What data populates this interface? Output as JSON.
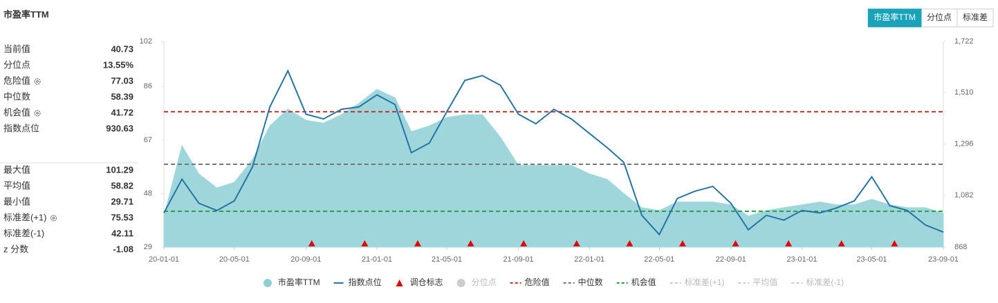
{
  "header": {
    "title": "市盈率TTM"
  },
  "toggle": [
    {
      "label": "市盈率TTM",
      "active": true
    },
    {
      "label": "分位点",
      "active": false
    },
    {
      "label": "标准差",
      "active": false
    }
  ],
  "stats": {
    "groups": [
      [
        {
          "label": "当前值",
          "value": 40.73,
          "icon": false
        },
        {
          "label": "分位点",
          "value": "13.55%",
          "icon": false
        },
        {
          "label": "危险值",
          "value": 77.03,
          "icon": true
        },
        {
          "label": "中位数",
          "value": 58.39,
          "icon": false
        },
        {
          "label": "机会值",
          "value": 41.72,
          "icon": true
        },
        {
          "label": "指数点位",
          "value": 930.63,
          "icon": false
        }
      ],
      [
        {
          "label": "最大值",
          "value": 101.29,
          "icon": false
        },
        {
          "label": "平均值",
          "value": 58.82,
          "icon": false
        },
        {
          "label": "最小值",
          "value": 29.71,
          "icon": false
        },
        {
          "label": "标准差(+1)",
          "value": 75.53,
          "icon": true
        },
        {
          "label": "标准差(-1)",
          "value": 42.11,
          "icon": false
        },
        {
          "label": "z 分数",
          "value": -1.08,
          "icon": false
        }
      ]
    ]
  },
  "chart_data": {
    "type": "dual-axis-area-line",
    "x": [
      "20-01-01",
      "20-02-01",
      "20-03-01",
      "20-04-01",
      "20-05-01",
      "20-06-01",
      "20-07-01",
      "20-08-01",
      "20-09-01",
      "20-10-01",
      "20-11-01",
      "20-12-01",
      "21-01-01",
      "21-02-01",
      "21-03-01",
      "21-04-01",
      "21-05-01",
      "21-06-01",
      "21-07-01",
      "21-08-01",
      "21-09-01",
      "21-10-01",
      "21-11-01",
      "21-12-01",
      "22-01-01",
      "22-02-01",
      "22-03-01",
      "22-04-01",
      "22-05-01",
      "22-06-01",
      "22-07-01",
      "22-08-01",
      "22-09-01",
      "22-10-01",
      "22-11-01",
      "22-12-01",
      "23-01-01",
      "23-02-01",
      "23-03-01",
      "23-04-01",
      "23-05-01",
      "23-06-01",
      "23-07-01",
      "23-08-01",
      "23-09-01"
    ],
    "xlim": [
      "20-01-01",
      "23-09-01"
    ],
    "xticks": [
      "20-01-01",
      "20-05-01",
      "20-09-01",
      "21-01-01",
      "21-05-01",
      "21-09-01",
      "22-01-01",
      "22-05-01",
      "22-09-01",
      "23-01-01",
      "23-05-01",
      "23-09-01"
    ],
    "ylim": [
      29,
      102
    ],
    "yticks": [
      29,
      48,
      67,
      86,
      102
    ],
    "y2lim": [
      868,
      1722
    ],
    "y2ticks": [
      868,
      {
        "value": 1082,
        "label": "1,082"
      },
      {
        "value": 1296,
        "label": "1,296"
      },
      {
        "value": 1510,
        "label": "1,510"
      },
      {
        "value": 1722,
        "label": "1,722"
      }
    ],
    "series": [
      {
        "name": "市盈率TTM",
        "kind": "area",
        "color": "#8ecfd6",
        "visible": true,
        "values": [
          40,
          65,
          55,
          50,
          52,
          60,
          72,
          78,
          74,
          73,
          76,
          80,
          85,
          82,
          70,
          72,
          75,
          76,
          76,
          68,
          58,
          58,
          58,
          58,
          55,
          53,
          48,
          43,
          42,
          45,
          45,
          45,
          44,
          40,
          42,
          43,
          44,
          45,
          44,
          44,
          46,
          44,
          43,
          43,
          41
        ]
      },
      {
        "name": "指数点位",
        "kind": "line",
        "color": "#2474a6",
        "axis": "y2",
        "visible": true,
        "values": [
          1010,
          1150,
          1050,
          1020,
          1060,
          1200,
          1450,
          1600,
          1420,
          1400,
          1440,
          1450,
          1500,
          1460,
          1260,
          1300,
          1430,
          1560,
          1580,
          1540,
          1420,
          1380,
          1440,
          1400,
          1340,
          1280,
          1220,
          1000,
          920,
          1070,
          1100,
          1120,
          1050,
          940,
          1000,
          980,
          1020,
          1010,
          1030,
          1060,
          1160,
          1040,
          1020,
          960,
          930
        ]
      },
      {
        "name": "调仓标志",
        "kind": "marker",
        "color": "#e60000",
        "visible": true,
        "x": [
          "20-09-11",
          "20-12-11",
          "21-03-12",
          "21-06-11",
          "21-09-10",
          "21-12-10",
          "22-03-11",
          "22-06-10",
          "22-09-09",
          "22-12-09",
          "23-03-10",
          "23-06-09"
        ]
      },
      {
        "name": "分位点",
        "kind": "point",
        "color": "#cccccc",
        "visible": false
      },
      {
        "name": "危险值",
        "kind": "hline",
        "color": "#c9302c",
        "visible": true,
        "value": 77.03
      },
      {
        "name": "中位数",
        "kind": "hline",
        "color": "#777777",
        "visible": true,
        "value": 58.39
      },
      {
        "name": "机会值",
        "kind": "hline",
        "color": "#27a045",
        "visible": true,
        "value": 41.72
      },
      {
        "name": "标准差(+1)",
        "kind": "hline",
        "color": "#cccccc",
        "visible": false
      },
      {
        "name": "平均值",
        "kind": "hline",
        "color": "#cccccc",
        "visible": false
      },
      {
        "name": "标准差(-1)",
        "kind": "hline",
        "color": "#cccccc",
        "visible": false
      }
    ]
  }
}
